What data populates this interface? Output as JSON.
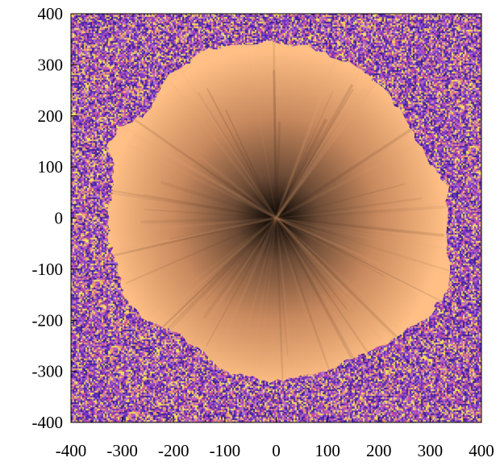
{
  "chart_data": {
    "type": "heatmap",
    "title": "",
    "xlabel": "",
    "ylabel": "",
    "xlim": [
      -400,
      400
    ],
    "ylim": [
      -400,
      400
    ],
    "x_ticks": [
      -400,
      -300,
      -200,
      -100,
      0,
      100,
      200,
      300,
      400
    ],
    "y_ticks": [
      -400,
      -300,
      -200,
      -100,
      0,
      100,
      200,
      300,
      400
    ],
    "x_tick_labels": [
      "-400",
      "-300",
      "-200",
      "-100",
      "0",
      "100",
      "200",
      "300",
      "400"
    ],
    "y_tick_labels": [
      "-400",
      "-300",
      "-200",
      "-100",
      "0",
      "100",
      "200",
      "300",
      "400"
    ],
    "grid": false,
    "center": [
      0,
      0
    ],
    "region_boundary": [
      [
        -330,
        140
      ],
      [
        -300,
        180
      ],
      [
        -250,
        205
      ],
      [
        -210,
        280
      ],
      [
        -130,
        330
      ],
      [
        -20,
        345
      ],
      [
        60,
        335
      ],
      [
        150,
        300
      ],
      [
        215,
        250
      ],
      [
        260,
        175
      ],
      [
        300,
        110
      ],
      [
        335,
        60
      ],
      [
        330,
        -20
      ],
      [
        340,
        -130
      ],
      [
        300,
        -190
      ],
      [
        215,
        -245
      ],
      [
        150,
        -275
      ],
      [
        80,
        -305
      ],
      [
        -10,
        -320
      ],
      [
        -100,
        -300
      ],
      [
        -185,
        -230
      ],
      [
        -255,
        -200
      ],
      [
        -300,
        -150
      ],
      [
        -310,
        -90
      ],
      [
        -325,
        -50
      ],
      [
        -325,
        20
      ],
      [
        -320,
        60
      ],
      [
        -315,
        100
      ]
    ],
    "colors": {
      "center": "#000000",
      "inner": "#6b4a35",
      "mid": "#c8895e",
      "edge": "#ffbf85",
      "noise": [
        "#5a2fb8",
        "#8a3cc4",
        "#c84fa0",
        "#e8a070",
        "#f4e060",
        "#3a1e9a",
        "#b070d0"
      ]
    }
  }
}
